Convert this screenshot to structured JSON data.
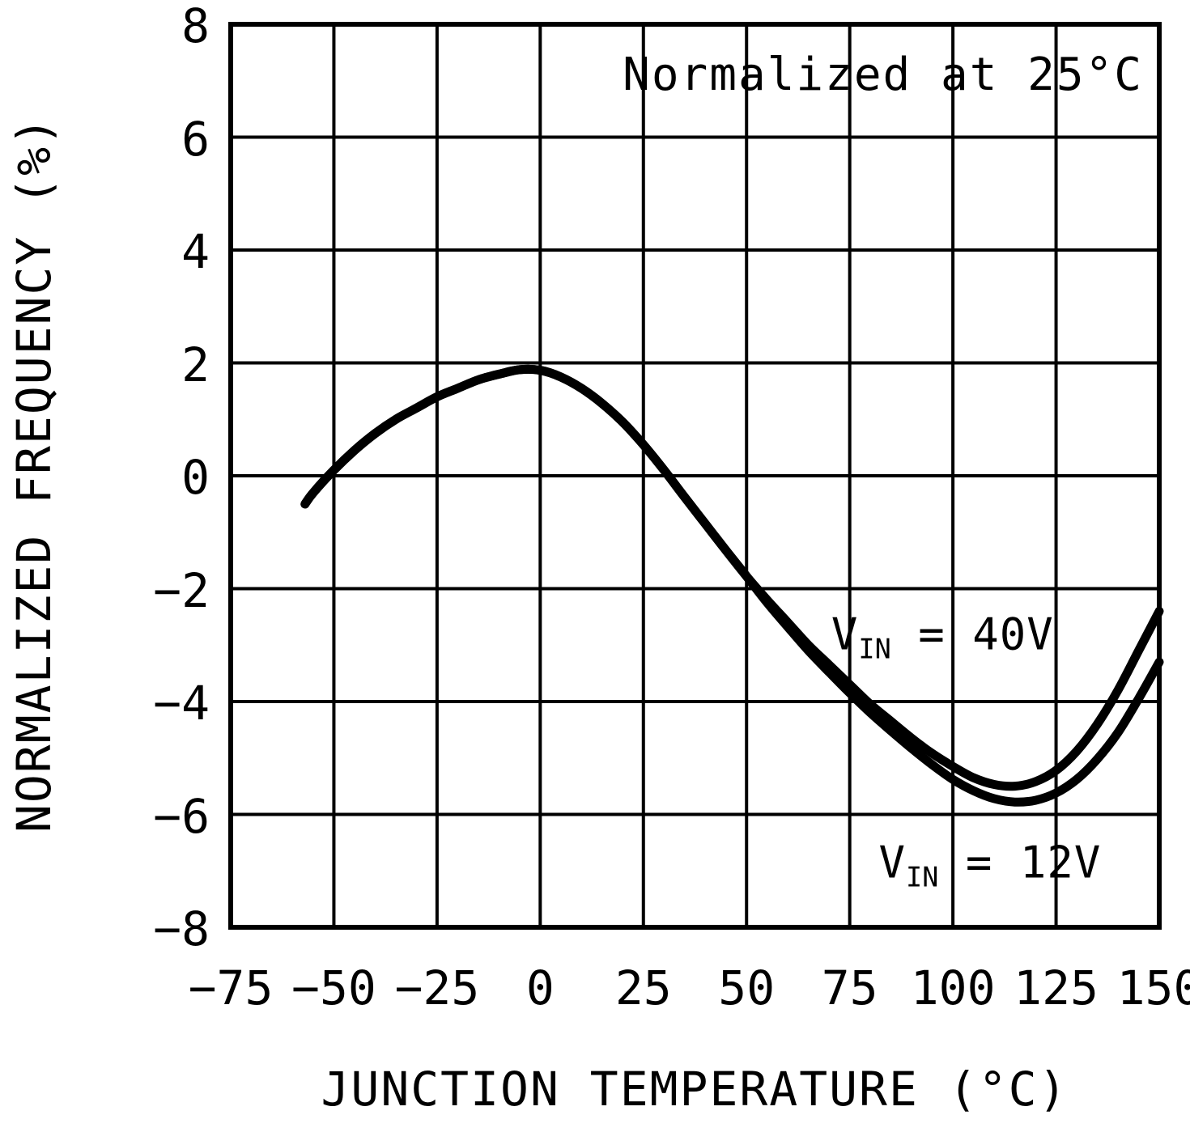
{
  "figure": {
    "background": "#ffffff",
    "foreground": "#000000"
  },
  "chart_data": {
    "type": "line",
    "annotation": "Normalized at 25°C",
    "xlabel": "JUNCTION TEMPERATURE (°C)",
    "ylabel": "NORMALIZED FREQUENCY (%)",
    "xlim": [
      -75,
      150
    ],
    "ylim": [
      -8,
      8
    ],
    "xticks": [
      -75,
      -50,
      -25,
      0,
      25,
      50,
      75,
      100,
      125,
      150
    ],
    "yticks": [
      -8,
      -6,
      -4,
      -2,
      0,
      2,
      4,
      6,
      8
    ],
    "grid": true,
    "legend_position": "inline-annotations",
    "line_color": "#000000",
    "series": [
      {
        "name": "VIN = 40V",
        "label": {
          "base": "V",
          "sub": "IN",
          "rest": " = 40V",
          "anchor_x": 97.5,
          "anchor_y": -2.85
        },
        "x": [
          -57,
          -55,
          -50,
          -45,
          -40,
          -35,
          -30,
          -25,
          -20,
          -15,
          -10,
          -5,
          0,
          5,
          10,
          15,
          20,
          25,
          30,
          35,
          40,
          45,
          50,
          55,
          60,
          65,
          70,
          75,
          80,
          85,
          90,
          95,
          100,
          105,
          110,
          115,
          120,
          125,
          130,
          135,
          140,
          145,
          150
        ],
        "y": [
          -0.5,
          -0.3,
          0.1,
          0.45,
          0.75,
          1.0,
          1.2,
          1.4,
          1.55,
          1.7,
          1.8,
          1.88,
          1.87,
          1.75,
          1.55,
          1.28,
          0.95,
          0.55,
          0.1,
          -0.38,
          -0.85,
          -1.32,
          -1.78,
          -2.2,
          -2.6,
          -3.0,
          -3.35,
          -3.7,
          -4.05,
          -4.35,
          -4.65,
          -4.92,
          -5.15,
          -5.35,
          -5.47,
          -5.5,
          -5.42,
          -5.22,
          -4.88,
          -4.4,
          -3.8,
          -3.1,
          -2.4
        ]
      },
      {
        "name": "VIN = 12V",
        "label": {
          "base": "V",
          "sub": "IN",
          "rest": " = 12V",
          "anchor_x": 109,
          "anchor_y": -6.9
        },
        "x": [
          -57,
          -55,
          -50,
          -45,
          -40,
          -35,
          -30,
          -25,
          -20,
          -15,
          -10,
          -5,
          0,
          5,
          10,
          15,
          20,
          25,
          30,
          35,
          40,
          45,
          50,
          55,
          60,
          65,
          70,
          75,
          80,
          85,
          90,
          95,
          100,
          105,
          110,
          115,
          120,
          125,
          130,
          135,
          140,
          145,
          150
        ],
        "y": [
          -0.5,
          -0.3,
          0.1,
          0.45,
          0.75,
          1.0,
          1.2,
          1.4,
          1.55,
          1.7,
          1.8,
          1.88,
          1.87,
          1.75,
          1.55,
          1.28,
          0.95,
          0.55,
          0.1,
          -0.38,
          -0.85,
          -1.32,
          -1.78,
          -2.25,
          -2.68,
          -3.1,
          -3.48,
          -3.85,
          -4.2,
          -4.52,
          -4.83,
          -5.12,
          -5.38,
          -5.58,
          -5.72,
          -5.78,
          -5.75,
          -5.62,
          -5.38,
          -5.02,
          -4.55,
          -3.95,
          -3.3
        ]
      }
    ]
  }
}
